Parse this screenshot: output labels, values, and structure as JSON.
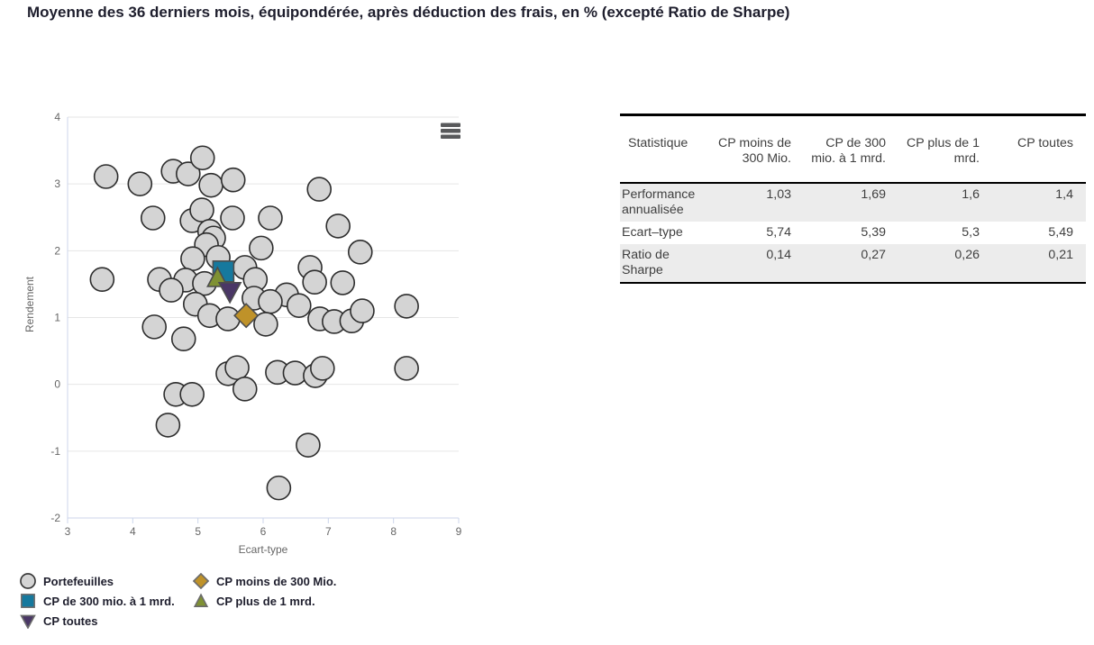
{
  "title": "Moyenne des 36 derniers mois, équipondérée, après déduction des frais, en % (excepté Ratio de Sharpe)",
  "chart_data": {
    "type": "scatter",
    "xlabel": "Ecart-type",
    "ylabel": "Rendement",
    "xlim": [
      3,
      9
    ],
    "ylim": [
      -2,
      4
    ],
    "x_ticks": [
      "3",
      "4",
      "5",
      "6",
      "7",
      "8",
      "9"
    ],
    "y_ticks": [
      "-2",
      "-1",
      "0",
      "1",
      "2",
      "3",
      "4"
    ],
    "grid": "horizontal",
    "colors": {
      "grid": "#e6e6e6",
      "axis_line": "#ccd6eb",
      "tick_label": "#666666",
      "point_stroke": "#2d2d2d",
      "special_stroke": "#4d4d4d"
    },
    "series": [
      {
        "name": "Portefeuilles",
        "marker": "circle",
        "color": "#d4d4d4",
        "points": [
          [
            3.59,
            3.11
          ],
          [
            4.11,
            3.0
          ],
          [
            4.62,
            3.19
          ],
          [
            4.85,
            3.15
          ],
          [
            5.07,
            3.39
          ],
          [
            5.2,
            2.98
          ],
          [
            5.54,
            3.06
          ],
          [
            6.86,
            2.92
          ],
          [
            4.31,
            2.49
          ],
          [
            4.91,
            2.45
          ],
          [
            5.06,
            2.61
          ],
          [
            5.53,
            2.49
          ],
          [
            6.11,
            2.49
          ],
          [
            7.15,
            2.37
          ],
          [
            5.18,
            2.29
          ],
          [
            5.24,
            2.19
          ],
          [
            5.13,
            2.09
          ],
          [
            5.97,
            2.04
          ],
          [
            7.49,
            1.98
          ],
          [
            4.92,
            1.88
          ],
          [
            5.31,
            1.9
          ],
          [
            5.72,
            1.75
          ],
          [
            6.72,
            1.75
          ],
          [
            3.53,
            1.57
          ],
          [
            4.41,
            1.57
          ],
          [
            4.81,
            1.56
          ],
          [
            4.59,
            1.41
          ],
          [
            5.1,
            1.51
          ],
          [
            5.88,
            1.57
          ],
          [
            5.86,
            1.29
          ],
          [
            6.79,
            1.53
          ],
          [
            7.22,
            1.52
          ],
          [
            6.36,
            1.34
          ],
          [
            6.11,
            1.24
          ],
          [
            6.55,
            1.18
          ],
          [
            8.2,
            1.17
          ],
          [
            4.96,
            1.2
          ],
          [
            5.18,
            1.03
          ],
          [
            5.46,
            0.98
          ],
          [
            6.04,
            0.9
          ],
          [
            6.87,
            0.98
          ],
          [
            7.09,
            0.94
          ],
          [
            7.36,
            0.95
          ],
          [
            7.52,
            1.1
          ],
          [
            4.33,
            0.86
          ],
          [
            4.78,
            0.68
          ],
          [
            5.46,
            0.16
          ],
          [
            5.6,
            0.25
          ],
          [
            5.72,
            -0.07
          ],
          [
            6.22,
            0.18
          ],
          [
            6.49,
            0.17
          ],
          [
            6.8,
            0.13
          ],
          [
            6.91,
            0.24
          ],
          [
            8.2,
            0.24
          ],
          [
            4.66,
            -0.15
          ],
          [
            4.91,
            -0.15
          ],
          [
            4.54,
            -0.61
          ],
          [
            6.69,
            -0.91
          ],
          [
            6.24,
            -1.55
          ]
        ]
      },
      {
        "name": "CP moins de 300 Mio.",
        "marker": "diamond",
        "color": "#bf9229",
        "points": [
          [
            5.74,
            1.03
          ]
        ]
      },
      {
        "name": "CP de 300 mio. à 1 mrd.",
        "marker": "square",
        "color": "#16799e",
        "points": [
          [
            5.39,
            1.69
          ]
        ]
      },
      {
        "name": "CP plus de 1 mrd.",
        "marker": "triangle-up",
        "color": "#7f9133",
        "points": [
          [
            5.3,
            1.6
          ]
        ]
      },
      {
        "name": "CP toutes",
        "marker": "triangle-down",
        "color": "#4a3766",
        "points": [
          [
            5.49,
            1.4
          ]
        ]
      }
    ]
  },
  "legend": {
    "rows": [
      [
        "Portefeuilles",
        "CP moins de 300 Mio."
      ],
      [
        "CP de 300 mio. à 1 mrd.",
        "CP plus de 1 mrd."
      ],
      [
        "CP toutes"
      ]
    ]
  },
  "controls": {
    "menu_icon": "hamburger"
  },
  "table": {
    "columns": [
      "Statistique",
      "CP moins de 300 Mio.",
      "CP de 300 mio. à 1 mrd.",
      "CP plus de 1 mrd.",
      "CP toutes"
    ],
    "rows": [
      {
        "label": "Performance annualisée",
        "values": [
          "1,03",
          "1,69",
          "1,6",
          "1,4"
        ]
      },
      {
        "label": "Ecart–type",
        "values": [
          "5,74",
          "5,39",
          "5,3",
          "5,49"
        ]
      },
      {
        "label": "Ratio de Sharpe",
        "values": [
          "0,14",
          "0,27",
          "0,26",
          "0,21"
        ]
      }
    ]
  }
}
